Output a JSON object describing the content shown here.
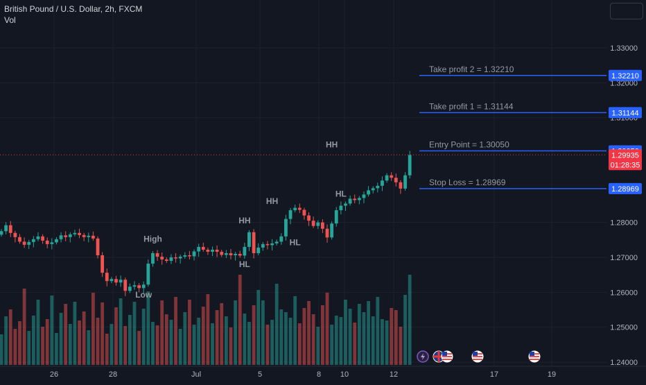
{
  "header": {
    "title": "British Pound / U.S. Dollar, 2h, FXCM",
    "volume_label": "Vol"
  },
  "colors": {
    "background": "#131722",
    "grid": "#1e222d",
    "up": "#26a69a",
    "down": "#ef5350",
    "level_line": "#2962ff",
    "text": "#d1d4dc",
    "annotation": "#9598a1",
    "current_price_bg": "#f23645"
  },
  "chart_data": {
    "type": "candlestick",
    "title": "British Pound / U.S. Dollar, 2h, FXCM",
    "y_axis": {
      "ticks": [
        "1.33000",
        "1.32000",
        "1.31000",
        "1.28000",
        "1.27000",
        "1.26000",
        "1.25000",
        "1.24000"
      ],
      "range": [
        1.2385,
        1.3345
      ]
    },
    "x_axis": {
      "ticks": [
        "26",
        "28",
        "Jul",
        "5",
        "8",
        "10",
        "12",
        "17",
        "19"
      ]
    },
    "price_path": [
      1.2775,
      1.2792,
      1.277,
      1.2758,
      1.2745,
      1.2736,
      1.2744,
      1.2752,
      1.276,
      1.2748,
      1.2738,
      1.2743,
      1.2752,
      1.2763,
      1.2758,
      1.2766,
      1.277,
      1.2764,
      1.2758,
      1.2762,
      1.2754,
      1.2706,
      1.2656,
      1.2632,
      1.2638,
      1.2628,
      1.2636,
      1.2604,
      1.2616,
      1.262,
      1.2612,
      1.2622,
      1.2682,
      1.2712,
      1.2702,
      1.2694,
      1.269,
      1.27,
      1.2697,
      1.2702,
      1.2706,
      1.2703,
      1.2717,
      1.273,
      1.2722,
      1.2716,
      1.2722,
      1.2716,
      1.2707,
      1.2712,
      1.2706,
      1.271,
      1.2705,
      1.273,
      1.2772,
      1.2712,
      1.2728,
      1.2738,
      1.2735,
      1.274,
      1.2745,
      1.276,
      1.281,
      1.2835,
      1.2842,
      1.2836,
      1.282,
      1.2805,
      1.279,
      1.28,
      1.2782,
      1.2757,
      1.2797,
      1.2835,
      1.2848,
      1.2854,
      1.2868,
      1.2864,
      1.287,
      1.288,
      1.2892,
      1.2898,
      1.2905,
      1.292,
      1.2935,
      1.2928,
      1.2915,
      1.2897,
      1.2935,
      1.2993
    ],
    "volume": [
      44,
      70,
      80,
      52,
      63,
      110,
      49,
      71,
      94,
      55,
      66,
      100,
      46,
      75,
      88,
      59,
      91,
      64,
      77,
      50,
      104,
      68,
      90,
      45,
      59,
      83,
      96,
      56,
      72,
      91,
      49,
      81,
      106,
      62,
      57,
      93,
      73,
      65,
      98,
      52,
      76,
      94,
      58,
      68,
      84,
      102,
      60,
      79,
      89,
      70,
      54,
      93,
      130,
      74,
      62,
      86,
      108,
      93,
      58,
      65,
      117,
      80,
      76,
      68,
      99,
      60,
      82,
      92,
      73,
      55,
      86,
      104,
      58,
      71,
      69,
      94,
      81,
      61,
      88,
      76,
      92,
      70,
      98,
      66,
      64,
      82,
      79,
      55,
      101,
      130
    ],
    "levels": [
      {
        "name": "Take profit 2",
        "label": "Take profit 2 = 1.32210",
        "price": 1.3221,
        "axis_label": "1.32210"
      },
      {
        "name": "Take profit 1",
        "label": "Take profit 1 = 1.31144",
        "price": 1.31144,
        "axis_label": "1.31144"
      },
      {
        "name": "Entry Point",
        "label": "Entry Point = 1.30050",
        "price": 1.3005,
        "axis_label": "1.30050"
      },
      {
        "name": "Stop Loss",
        "label": "Stop Loss = 1.28969",
        "price": 1.28969,
        "axis_label": "1.28969"
      }
    ],
    "current_price": {
      "price": 1.29935,
      "label": "1.29935",
      "countdown": "01:28:35"
    },
    "annotations": [
      {
        "text": "High",
        "bar": 33,
        "price": 1.2745
      },
      {
        "text": "Low",
        "bar": 31,
        "price": 1.2585
      },
      {
        "text": "HH",
        "bar": 53,
        "price": 1.2797
      },
      {
        "text": "HL",
        "bar": 53,
        "price": 1.2672
      },
      {
        "text": "HH",
        "bar": 59,
        "price": 1.2853
      },
      {
        "text": "HL",
        "bar": 64,
        "price": 1.2735
      },
      {
        "text": "HH",
        "bar": 72,
        "price": 1.3015
      },
      {
        "text": "HL",
        "bar": 74,
        "price": 1.2874
      }
    ],
    "event_markers": [
      "lightning-icon",
      "uk-flag-icon",
      "us-flag-icon",
      "us-flag-icon",
      "us-flag-icon"
    ]
  }
}
